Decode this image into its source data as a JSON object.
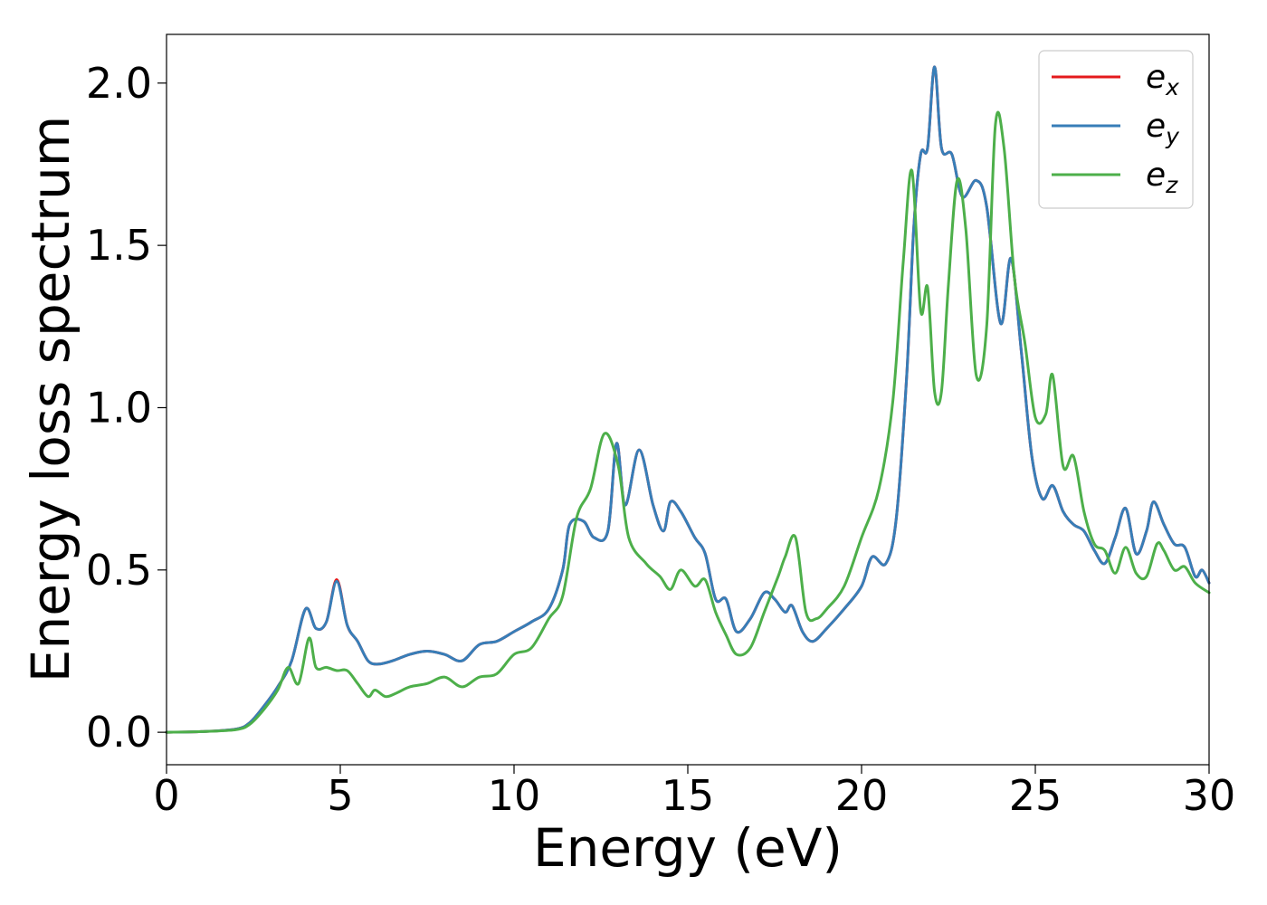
{
  "chart_data": {
    "type": "line",
    "xlabel": "Energy (eV)",
    "ylabel": "Energy loss spectrum",
    "xlim": [
      0,
      30
    ],
    "ylim": [
      -0.1,
      2.15
    ],
    "xticks": [
      0,
      5,
      10,
      15,
      20,
      25,
      30
    ],
    "xtick_labels": [
      "0",
      "5",
      "10",
      "15",
      "20",
      "25",
      "30"
    ],
    "yticks": [
      0.0,
      0.5,
      1.0,
      1.5,
      2.0
    ],
    "ytick_labels": [
      "0.0",
      "0.5",
      "1.0",
      "1.5",
      "2.0"
    ],
    "grid": false,
    "legend_position": "top-right",
    "series": [
      {
        "name": "e_x",
        "label_main": "e",
        "label_sub": "x",
        "color": "#e41a1c",
        "x": [
          0,
          1,
          2,
          2.4,
          2.8,
          3.2,
          3.6,
          4.0,
          4.3,
          4.6,
          4.9,
          5.2,
          5.5,
          5.8,
          6.1,
          6.5,
          7.0,
          7.5,
          8.0,
          8.5,
          9.0,
          9.5,
          10.0,
          10.5,
          11.0,
          11.4,
          11.6,
          12.0,
          12.3,
          12.7,
          12.95,
          13.2,
          13.6,
          14.0,
          14.3,
          14.5,
          14.8,
          15.2,
          15.5,
          15.8,
          16.1,
          16.4,
          16.8,
          17.2,
          17.5,
          17.8,
          18.0,
          18.3,
          18.6,
          19.0,
          19.5,
          20.0,
          20.3,
          20.7,
          21.0,
          21.3,
          21.5,
          21.7,
          21.9,
          22.1,
          22.3,
          22.6,
          22.9,
          23.3,
          23.6,
          24.0,
          24.3,
          24.6,
          24.9,
          25.2,
          25.5,
          25.8,
          26.1,
          26.4,
          26.7,
          27.0,
          27.3,
          27.6,
          27.9,
          28.2,
          28.4,
          28.7,
          29.0,
          29.3,
          29.6,
          29.8,
          30.0
        ],
        "y": [
          0.0,
          0.002,
          0.01,
          0.03,
          0.08,
          0.14,
          0.22,
          0.38,
          0.32,
          0.34,
          0.47,
          0.33,
          0.28,
          0.22,
          0.21,
          0.22,
          0.24,
          0.25,
          0.24,
          0.22,
          0.27,
          0.28,
          0.31,
          0.34,
          0.38,
          0.5,
          0.64,
          0.65,
          0.6,
          0.62,
          0.89,
          0.7,
          0.87,
          0.7,
          0.62,
          0.71,
          0.68,
          0.6,
          0.55,
          0.41,
          0.41,
          0.31,
          0.35,
          0.43,
          0.41,
          0.37,
          0.39,
          0.31,
          0.28,
          0.32,
          0.38,
          0.45,
          0.54,
          0.52,
          0.66,
          1.1,
          1.55,
          1.78,
          1.8,
          2.05,
          1.8,
          1.78,
          1.65,
          1.7,
          1.62,
          1.26,
          1.46,
          1.17,
          0.85,
          0.72,
          0.76,
          0.68,
          0.64,
          0.62,
          0.56,
          0.52,
          0.6,
          0.69,
          0.55,
          0.62,
          0.71,
          0.64,
          0.58,
          0.57,
          0.48,
          0.5,
          0.46
        ]
      },
      {
        "name": "e_y",
        "label_main": "e",
        "label_sub": "y",
        "color": "#377eb8",
        "x": [
          0,
          1,
          2,
          2.4,
          2.8,
          3.2,
          3.6,
          4.0,
          4.3,
          4.6,
          4.9,
          5.2,
          5.5,
          5.8,
          6.1,
          6.5,
          7.0,
          7.5,
          8.0,
          8.5,
          9.0,
          9.5,
          10.0,
          10.5,
          11.0,
          11.4,
          11.6,
          12.0,
          12.3,
          12.7,
          12.95,
          13.2,
          13.6,
          14.0,
          14.3,
          14.5,
          14.8,
          15.2,
          15.5,
          15.8,
          16.1,
          16.4,
          16.8,
          17.2,
          17.5,
          17.8,
          18.0,
          18.3,
          18.6,
          19.0,
          19.5,
          20.0,
          20.3,
          20.7,
          21.0,
          21.3,
          21.5,
          21.7,
          21.9,
          22.1,
          22.3,
          22.6,
          22.9,
          23.3,
          23.6,
          24.0,
          24.3,
          24.6,
          24.9,
          25.2,
          25.5,
          25.8,
          26.1,
          26.4,
          26.7,
          27.0,
          27.3,
          27.6,
          27.9,
          28.2,
          28.4,
          28.7,
          29.0,
          29.3,
          29.6,
          29.8,
          30.0
        ],
        "y": [
          0.0,
          0.002,
          0.01,
          0.03,
          0.08,
          0.14,
          0.22,
          0.38,
          0.32,
          0.34,
          0.465,
          0.33,
          0.28,
          0.22,
          0.21,
          0.22,
          0.24,
          0.25,
          0.24,
          0.22,
          0.27,
          0.28,
          0.31,
          0.34,
          0.38,
          0.5,
          0.64,
          0.65,
          0.6,
          0.62,
          0.89,
          0.7,
          0.87,
          0.7,
          0.62,
          0.71,
          0.68,
          0.6,
          0.55,
          0.41,
          0.41,
          0.31,
          0.35,
          0.43,
          0.41,
          0.37,
          0.39,
          0.31,
          0.28,
          0.32,
          0.38,
          0.45,
          0.54,
          0.52,
          0.66,
          1.1,
          1.55,
          1.78,
          1.8,
          2.05,
          1.8,
          1.78,
          1.65,
          1.7,
          1.62,
          1.26,
          1.46,
          1.17,
          0.85,
          0.72,
          0.76,
          0.68,
          0.64,
          0.62,
          0.56,
          0.52,
          0.6,
          0.69,
          0.55,
          0.62,
          0.71,
          0.64,
          0.58,
          0.57,
          0.48,
          0.5,
          0.46
        ]
      },
      {
        "name": "e_z",
        "label_main": "e",
        "label_sub": "z",
        "color": "#4daf4a",
        "x": [
          0,
          1,
          2,
          2.4,
          2.8,
          3.2,
          3.5,
          3.8,
          4.1,
          4.3,
          4.6,
          4.9,
          5.2,
          5.5,
          5.8,
          6.0,
          6.3,
          6.6,
          7.0,
          7.5,
          8.0,
          8.5,
          9.0,
          9.5,
          10.0,
          10.5,
          11.0,
          11.4,
          11.8,
          12.2,
          12.6,
          13.0,
          13.3,
          13.8,
          14.2,
          14.5,
          14.8,
          15.2,
          15.5,
          15.8,
          16.1,
          16.4,
          16.8,
          17.2,
          17.6,
          17.8,
          18.1,
          18.4,
          18.7,
          19.0,
          19.5,
          20.0,
          20.5,
          20.9,
          21.2,
          21.45,
          21.7,
          21.9,
          22.1,
          22.3,
          22.5,
          22.75,
          23.0,
          23.3,
          23.6,
          23.85,
          24.1,
          24.4,
          24.7,
          25.0,
          25.3,
          25.5,
          25.8,
          26.1,
          26.4,
          26.7,
          27.0,
          27.3,
          27.6,
          27.9,
          28.2,
          28.5,
          28.7,
          29.0,
          29.3,
          29.6,
          30.0
        ],
        "y": [
          0.0,
          0.002,
          0.008,
          0.025,
          0.07,
          0.13,
          0.2,
          0.15,
          0.29,
          0.2,
          0.2,
          0.19,
          0.19,
          0.15,
          0.11,
          0.13,
          0.11,
          0.12,
          0.14,
          0.15,
          0.17,
          0.14,
          0.17,
          0.18,
          0.24,
          0.26,
          0.35,
          0.42,
          0.66,
          0.75,
          0.92,
          0.82,
          0.6,
          0.52,
          0.48,
          0.44,
          0.5,
          0.45,
          0.47,
          0.37,
          0.3,
          0.24,
          0.26,
          0.37,
          0.48,
          0.54,
          0.6,
          0.37,
          0.35,
          0.38,
          0.45,
          0.6,
          0.75,
          1.02,
          1.45,
          1.73,
          1.3,
          1.37,
          1.05,
          1.05,
          1.38,
          1.7,
          1.55,
          1.1,
          1.25,
          1.87,
          1.8,
          1.4,
          1.2,
          0.97,
          0.98,
          1.1,
          0.82,
          0.85,
          0.68,
          0.58,
          0.56,
          0.49,
          0.57,
          0.49,
          0.48,
          0.58,
          0.56,
          0.5,
          0.51,
          0.46,
          0.43
        ]
      }
    ]
  }
}
